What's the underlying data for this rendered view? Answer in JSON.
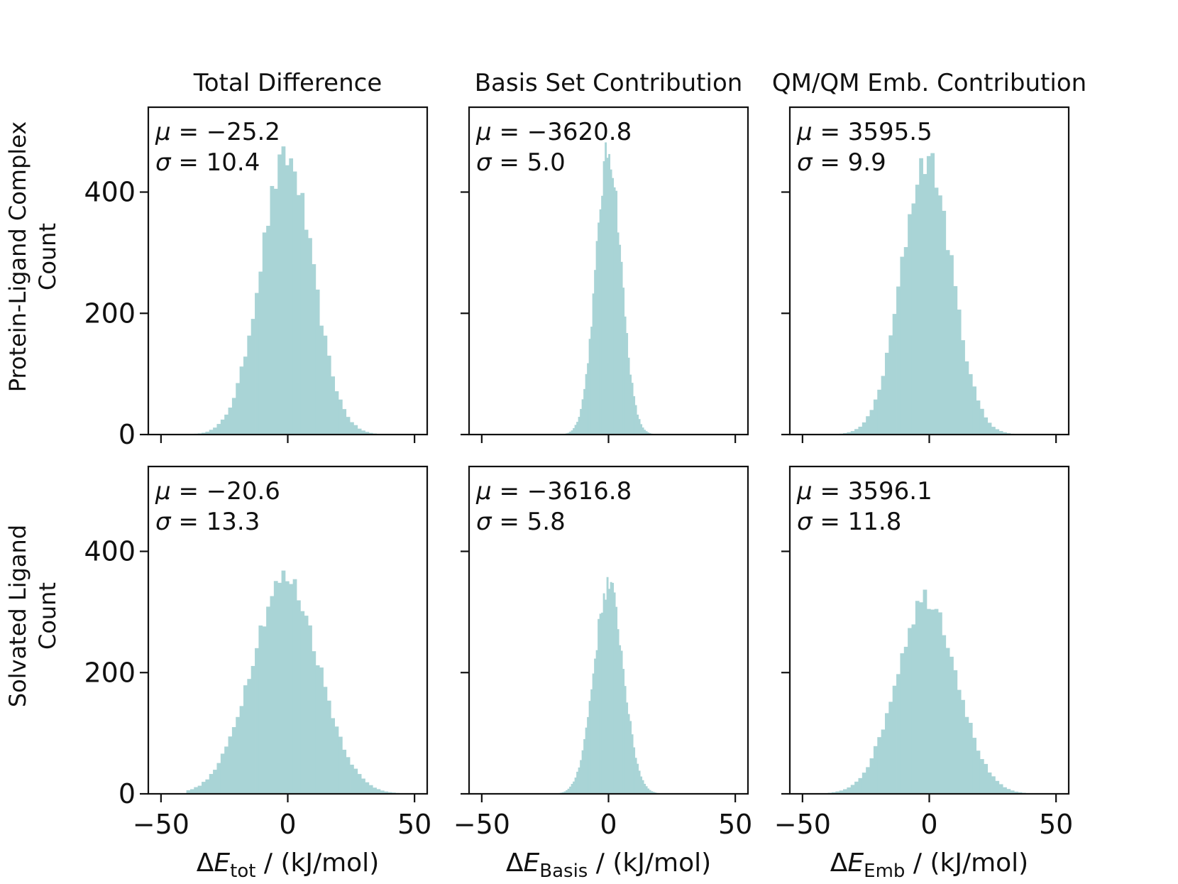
{
  "chart_data": {
    "type": "histogram-grid",
    "bar_color": "#A9D4D6",
    "row_labels": [
      "Protein-Ligand Complex",
      "Solvated Ligand"
    ],
    "column_titles": [
      "Total Difference",
      "Basis Set Contribution",
      "QM/QM Emb. Contribution"
    ],
    "ylabel": "Count",
    "xlabels": [
      {
        "prefix": "ΔE",
        "sub": "tot",
        "suffix": " / (kJ/mol)"
      },
      {
        "prefix": "ΔE",
        "sub": "Basis",
        "suffix": " / (kJ/mol)"
      },
      {
        "prefix": "ΔE",
        "sub": "Emb",
        "suffix": " / (kJ/mol)"
      }
    ],
    "xlim": [
      -55,
      55
    ],
    "ylim": [
      0,
      540
    ],
    "xticks": [
      -50,
      0,
      50
    ],
    "yticks": [
      0,
      200,
      400
    ],
    "stat_labels": {
      "mu": "μ",
      "sigma": "σ",
      "eq": " = "
    },
    "panels": [
      {
        "row": 0,
        "col": 0,
        "mu": "−25.2",
        "sigma": "10.4",
        "mean": -0.5,
        "sd": 10.4,
        "peak": 455
      },
      {
        "row": 0,
        "col": 1,
        "mu": "−3620.8",
        "sigma": "5.0",
        "mean": 0.0,
        "sd": 5.0,
        "peak": 468
      },
      {
        "row": 0,
        "col": 2,
        "mu": "3595.5",
        "sigma": "9.9",
        "mean": -1.0,
        "sd": 9.9,
        "peak": 455
      },
      {
        "row": 1,
        "col": 0,
        "mu": "−20.6",
        "sigma": "13.3",
        "mean": -1.0,
        "sd": 13.3,
        "peak": 355
      },
      {
        "row": 1,
        "col": 1,
        "mu": "−3616.8",
        "sigma": "5.8",
        "mean": 0.0,
        "sd": 5.8,
        "peak": 345
      },
      {
        "row": 1,
        "col": 2,
        "mu": "3596.1",
        "sigma": "11.8",
        "mean": -1.0,
        "sd": 11.8,
        "peak": 325
      }
    ]
  }
}
